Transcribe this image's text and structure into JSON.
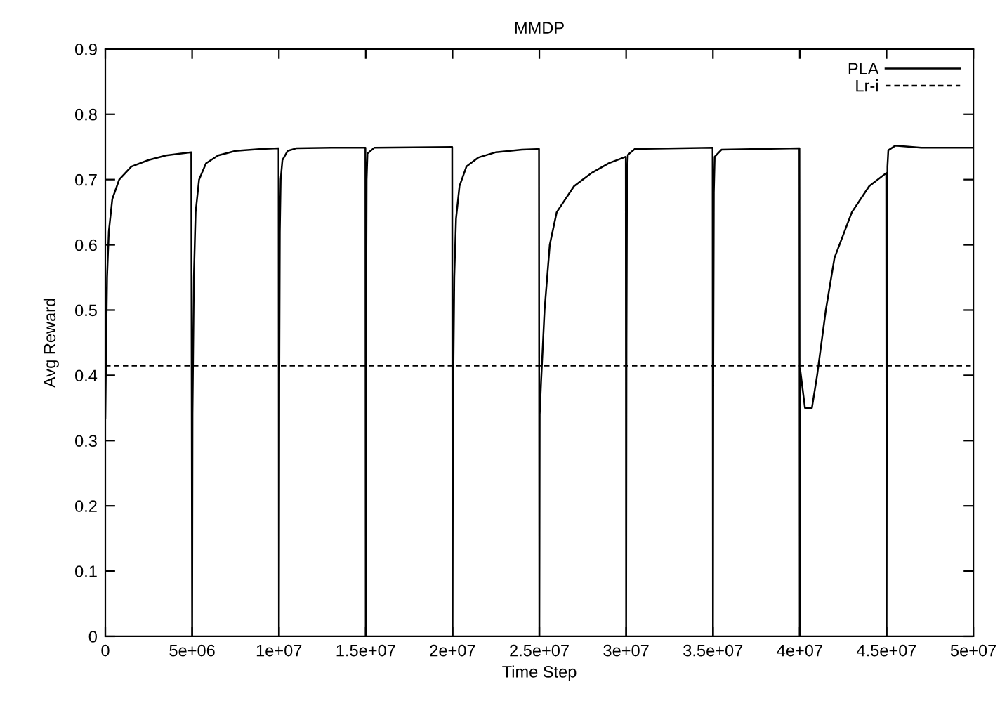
{
  "chart_data": {
    "type": "line",
    "title": "MMDP",
    "xlabel": "Time Step",
    "ylabel": "Avg Reward",
    "xlim": [
      0,
      50000000
    ],
    "ylim": [
      0,
      0.9
    ],
    "xticks": [
      {
        "value": 0,
        "label": "0"
      },
      {
        "value": 5000000,
        "label": "5e+06"
      },
      {
        "value": 10000000,
        "label": "1e+07"
      },
      {
        "value": 15000000,
        "label": "1.5e+07"
      },
      {
        "value": 20000000,
        "label": "2e+07"
      },
      {
        "value": 25000000,
        "label": "2.5e+07"
      },
      {
        "value": 30000000,
        "label": "3e+07"
      },
      {
        "value": 35000000,
        "label": "3.5e+07"
      },
      {
        "value": 40000000,
        "label": "4e+07"
      },
      {
        "value": 45000000,
        "label": "4.5e+07"
      },
      {
        "value": 50000000,
        "label": "5e+07"
      }
    ],
    "yticks": [
      0,
      0.1,
      0.2,
      0.3,
      0.4,
      0.5,
      0.6,
      0.7,
      0.8,
      0.9
    ],
    "legend": "top right",
    "grid": false,
    "marker": "none",
    "series": [
      {
        "name": "PLA",
        "color": "#000000",
        "line_style": "solid",
        "x": [
          0,
          50000,
          100000,
          200000,
          400000,
          800000,
          1500000,
          2500000,
          3500000,
          4950000,
          5000000,
          5020000,
          5100000,
          5200000,
          5400000,
          5800000,
          6500000,
          7500000,
          9000000,
          9980000,
          10000000,
          10020000,
          10050000,
          10100000,
          10200000,
          10500000,
          11000000,
          13000000,
          14980000,
          15000000,
          15020000,
          15050000,
          15100000,
          15500000,
          19980000,
          20000000,
          20020000,
          20100000,
          20200000,
          20400000,
          20800000,
          21500000,
          22500000,
          24000000,
          24980000,
          25000000,
          25020000,
          25100000,
          25300000,
          25600000,
          26000000,
          27000000,
          28000000,
          29000000,
          29980000,
          30000000,
          30020000,
          30050000,
          30100000,
          30500000,
          34980000,
          35000000,
          35020000,
          35050000,
          35100000,
          35500000,
          39980000,
          40000000,
          40020000,
          40300000,
          40700000,
          41000000,
          41500000,
          42000000,
          43000000,
          44000000,
          44980000,
          45000000,
          45020000,
          45050000,
          45100000,
          45500000,
          47000000,
          50000000
        ],
        "values": [
          0.335,
          0.45,
          0.55,
          0.62,
          0.67,
          0.7,
          0.72,
          0.73,
          0.737,
          0.742,
          0,
          0.34,
          0.55,
          0.65,
          0.7,
          0.725,
          0.737,
          0.744,
          0.747,
          0.748,
          0,
          0.4,
          0.62,
          0.7,
          0.73,
          0.744,
          0.748,
          0.749,
          0.749,
          0,
          0.45,
          0.7,
          0.74,
          0.749,
          0.75,
          0,
          0.33,
          0.55,
          0.64,
          0.69,
          0.72,
          0.734,
          0.742,
          0.746,
          0.747,
          0,
          0.34,
          0.39,
          0.5,
          0.6,
          0.65,
          0.69,
          0.71,
          0.725,
          0.735,
          0,
          0.45,
          0.7,
          0.738,
          0.747,
          0.749,
          0,
          0.42,
          0.68,
          0.735,
          0.746,
          0.748,
          0,
          0.41,
          0.35,
          0.35,
          0.4,
          0.5,
          0.58,
          0.65,
          0.69,
          0.71,
          0,
          0.5,
          0.72,
          0.745,
          0.752,
          0.749,
          0.749
        ]
      },
      {
        "name": "Lr-i",
        "color": "#000000",
        "line_style": "dashed",
        "x": [
          0,
          50000000
        ],
        "values": [
          0.415,
          0.415
        ]
      }
    ]
  }
}
